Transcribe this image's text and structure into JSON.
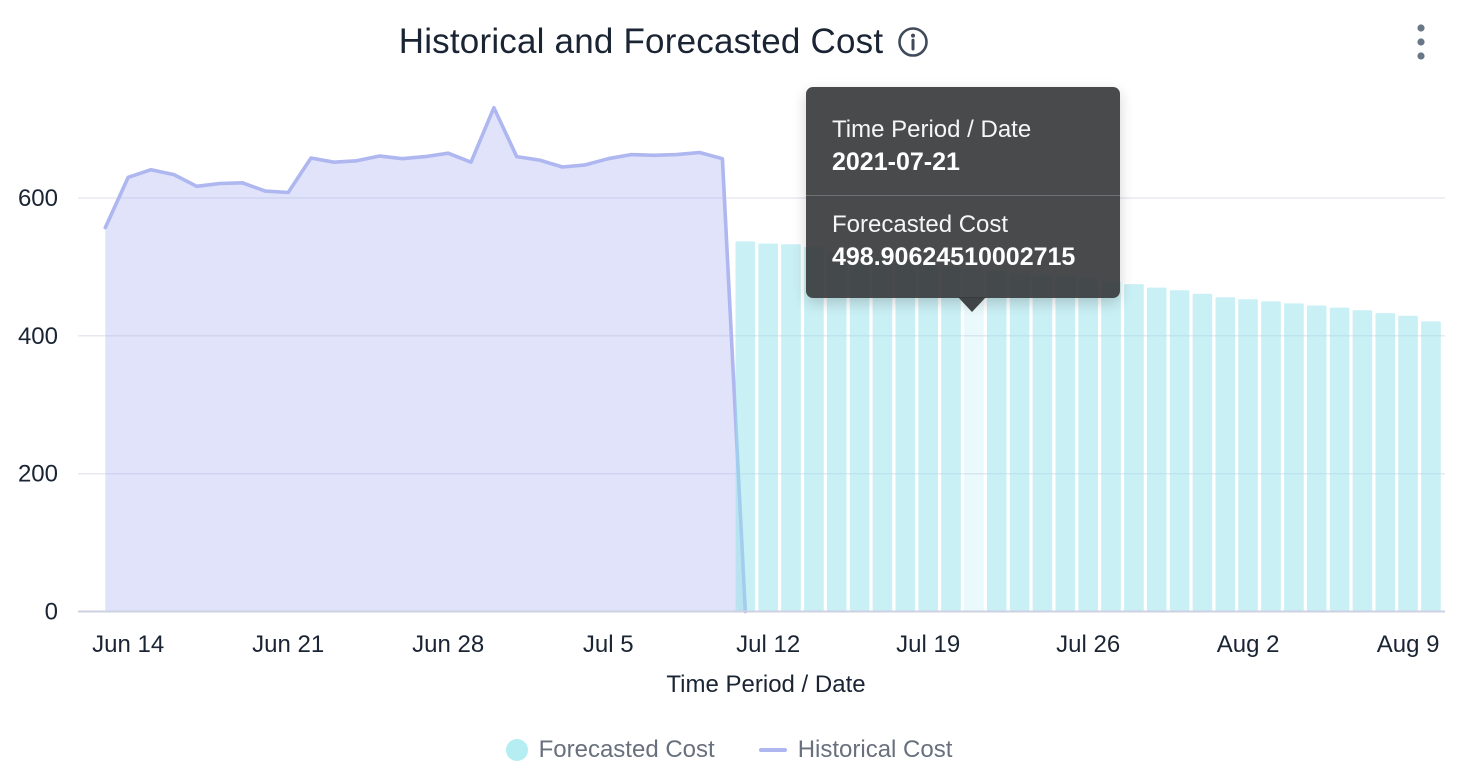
{
  "header": {
    "title": "Historical and Forecasted Cost"
  },
  "tooltip": {
    "header_label": "Time Period / Date",
    "header_value": "2021-07-21",
    "series_label": "Forecasted Cost",
    "series_value": "498.90624510002715"
  },
  "legend": {
    "items": [
      {
        "label": "Forecasted Cost",
        "swatch": "circle",
        "color": "#b4eef2"
      },
      {
        "label": "Historical Cost",
        "swatch": "line",
        "color": "#aeb7ef"
      }
    ]
  },
  "chart_data": {
    "type": "combo",
    "title": "Historical and Forecasted Cost",
    "xlabel": "Time Period / Date",
    "ylabel": "",
    "ylim": [
      0,
      760
    ],
    "grid": true,
    "legend_position": "bottom",
    "y_ticks": [
      0,
      200,
      400,
      600
    ],
    "x_ticks": [
      {
        "label": "Jun 14",
        "day": 1
      },
      {
        "label": "Jun 21",
        "day": 8
      },
      {
        "label": "Jun 28",
        "day": 15
      },
      {
        "label": "Jul 5",
        "day": 22
      },
      {
        "label": "Jul 12",
        "day": 29
      },
      {
        "label": "Jul 19",
        "day": 36
      },
      {
        "label": "Jul 26",
        "day": 43
      },
      {
        "label": "Aug 2",
        "day": 50
      },
      {
        "label": "Aug 9",
        "day": 57
      }
    ],
    "series": [
      {
        "name": "Historical Cost",
        "type": "area",
        "line_color": "#aeb7ef",
        "fill_color": "rgba(174,182,238,0.38)",
        "start_date": "2021-06-13",
        "start_day": 0,
        "values": [
          557,
          630,
          641,
          634,
          617,
          621,
          622,
          610,
          608,
          658,
          652,
          654,
          661,
          657,
          660,
          665,
          652,
          731,
          660,
          655,
          645,
          648,
          657,
          663,
          662,
          663,
          666,
          657,
          0
        ]
      },
      {
        "name": "Forecasted Cost",
        "type": "bar",
        "fill_color": "rgba(152,226,235,0.52)",
        "highlight_color": "rgba(152,226,235,0.2)",
        "start_date": "2021-07-11",
        "start_day": 28,
        "highlighted_index": 10,
        "highlighted_date": "2021-07-21",
        "values": [
          537,
          534,
          533,
          529,
          521,
          517,
          513,
          509,
          503,
          500,
          498.90624510002715,
          494,
          491,
          488,
          486,
          483,
          479,
          475,
          470,
          466,
          461,
          456,
          453,
          450,
          447,
          444,
          441,
          437,
          433,
          429,
          421
        ]
      }
    ]
  }
}
